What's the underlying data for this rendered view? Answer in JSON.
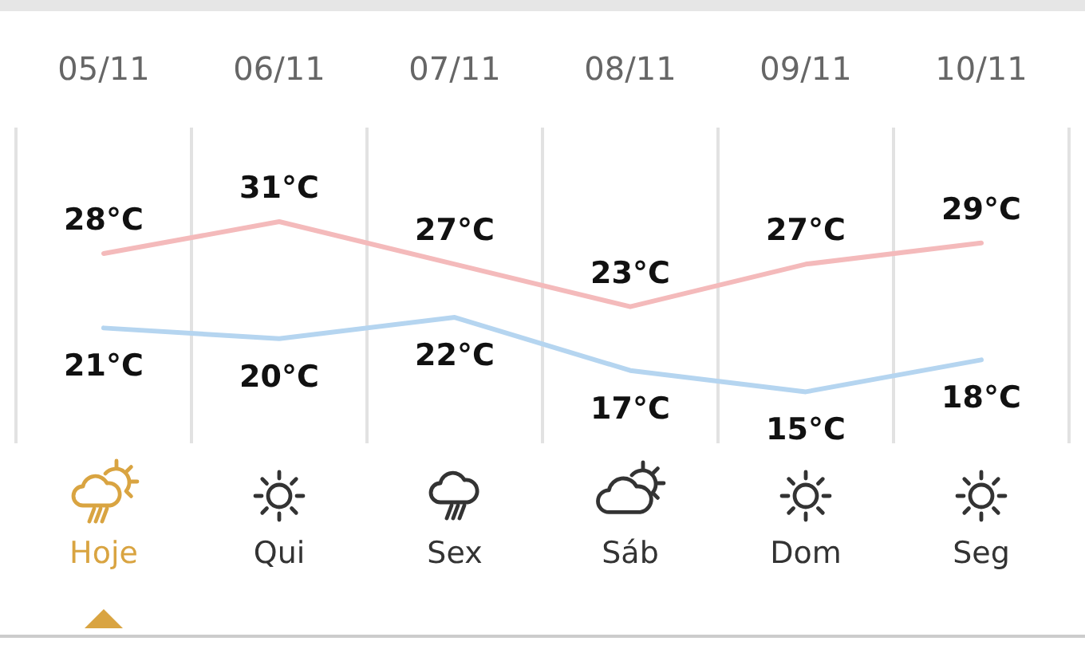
{
  "chart_data": {
    "type": "line",
    "categories": [
      "05/11",
      "06/11",
      "07/11",
      "08/11",
      "09/11",
      "10/11"
    ],
    "series": [
      {
        "color": "#f4babb",
        "values": [
          28,
          31,
          27,
          23,
          27,
          29
        ],
        "value_labels": [
          "28°C",
          "31°C",
          "27°C",
          "23°C",
          "27°C",
          "29°C"
        ]
      },
      {
        "color": "#b5d5f0",
        "values": [
          21,
          20,
          22,
          17,
          15,
          18
        ],
        "value_labels": [
          "21°C",
          "20°C",
          "22°C",
          "17°C",
          "15°C",
          "18°C"
        ]
      }
    ],
    "annotations": [
      "Hoje",
      "Qui",
      "Sex",
      "Sáb",
      "Dom",
      "Seg"
    ],
    "grid": "x"
  }
}
